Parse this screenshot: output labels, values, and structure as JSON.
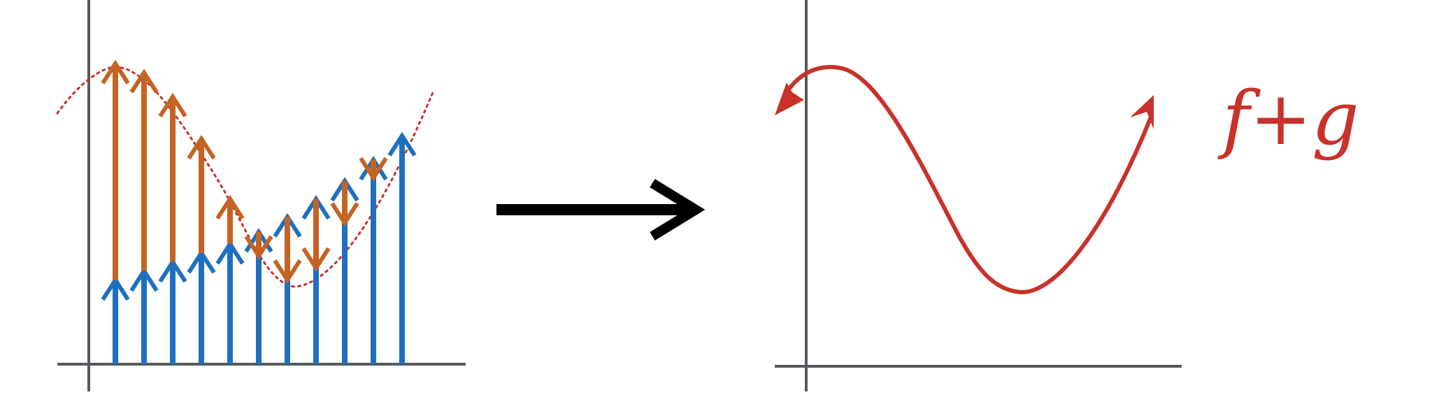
{
  "diagram": {
    "label": "f+g",
    "colors": {
      "axis": "#55585c",
      "blue_arrows": "#1f6fbf",
      "orange_arrows": "#c46323",
      "dotted_curve": "#c8322a",
      "result_curve": "#c8322a",
      "big_arrow": "#000000"
    },
    "samples": [
      {
        "blue": 0.28,
        "orange": 0.72
      },
      {
        "blue": 0.31,
        "orange": 0.66
      },
      {
        "blue": 0.34,
        "orange": 0.55
      },
      {
        "blue": 0.37,
        "orange": 0.38
      },
      {
        "blue": 0.4,
        "orange": 0.15
      },
      {
        "blue": 0.44,
        "orange": -0.08
      },
      {
        "blue": 0.49,
        "orange": -0.21
      },
      {
        "blue": 0.55,
        "orange": -0.23
      },
      {
        "blue": 0.61,
        "orange": -0.14
      },
      {
        "blue": 0.68,
        "orange": -0.06
      },
      {
        "blue": 0.76,
        "orange": 0.0
      }
    ]
  }
}
